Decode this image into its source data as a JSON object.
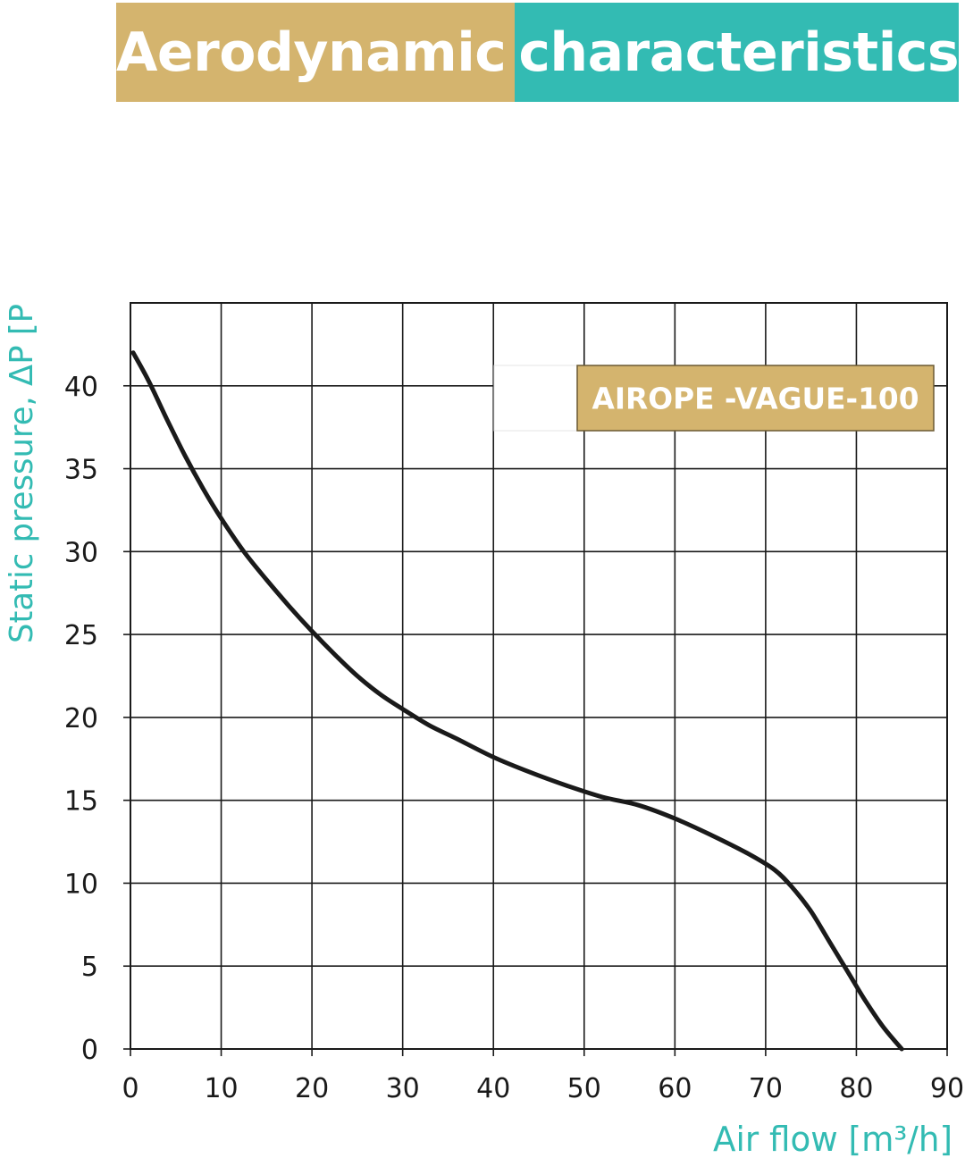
{
  "title": {
    "part1": "Aerodynamic",
    "part2": "characteristics",
    "color1": "#d4b46e",
    "color2": "#33bbb3"
  },
  "chart_data": {
    "type": "line",
    "xlabel": "Air flow [m³/h]",
    "ylabel": "Static pressure, ΔP [P",
    "xlim": [
      0,
      90
    ],
    "ylim": [
      0,
      45
    ],
    "x_ticks": [
      0,
      10,
      20,
      30,
      40,
      50,
      60,
      70,
      80,
      90
    ],
    "y_ticks": [
      0,
      5,
      10,
      15,
      20,
      25,
      30,
      35,
      40
    ],
    "grid": true,
    "label_color": "#33bbb3",
    "legend_box_color": "#d4b46e",
    "series": [
      {
        "name": "AIROPE -VAGUE-100",
        "color": "#1a1a1a",
        "x": [
          0.3,
          2,
          4,
          6,
          8,
          10,
          12.5,
          15,
          17.5,
          20,
          22.5,
          25,
          27.5,
          30,
          33,
          36,
          40,
          44,
          48,
          52,
          56,
          60,
          64,
          68,
          71,
          73,
          75,
          77,
          79,
          81,
          83,
          85
        ],
        "y": [
          42,
          40.3,
          38,
          35.8,
          33.8,
          32,
          30,
          28.3,
          26.7,
          25.2,
          23.8,
          22.5,
          21.4,
          20.5,
          19.5,
          18.7,
          17.6,
          16.7,
          15.9,
          15.2,
          14.7,
          13.9,
          12.9,
          11.8,
          10.8,
          9.7,
          8.3,
          6.5,
          4.7,
          2.9,
          1.3,
          0
        ]
      }
    ]
  }
}
